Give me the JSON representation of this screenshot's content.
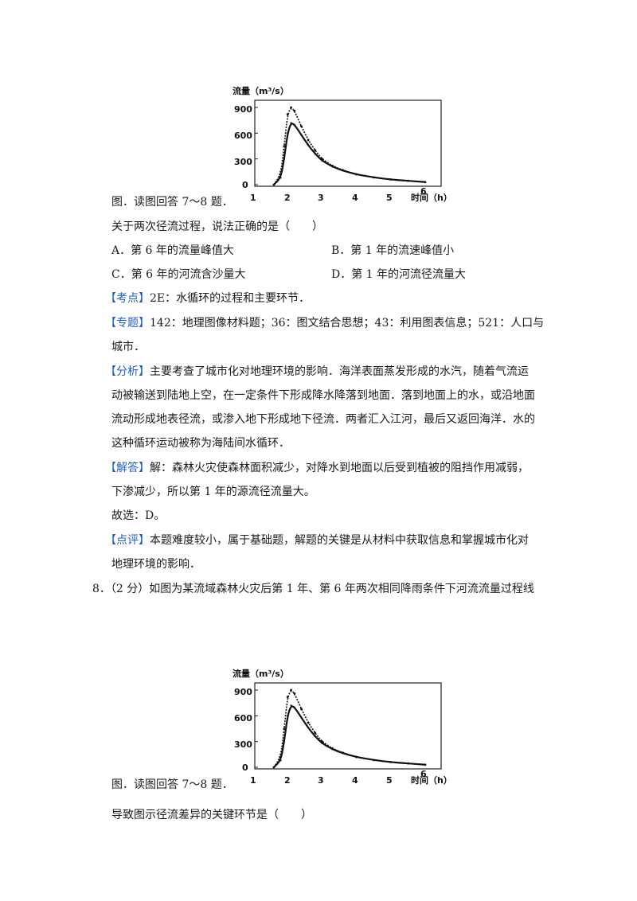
{
  "chart1": {
    "ylabel": "流量（m³/s）",
    "xlabel": "时间（h）",
    "yticks": [
      "900",
      "600",
      "300",
      "0"
    ],
    "xticks": [
      "1",
      "2",
      "3",
      "4",
      "5",
      "6"
    ]
  },
  "chart2": {
    "ylabel": "流量（m³/s）",
    "xlabel": "时间（h）",
    "yticks": [
      "900",
      "600",
      "300",
      "0"
    ],
    "xticks": [
      "1",
      "2",
      "3",
      "4",
      "5",
      "6"
    ]
  },
  "chart_data": [
    {
      "type": "line",
      "xlabel": "时间（h）",
      "ylabel": "流量（m³/s）",
      "xlim": [
        1,
        6.5
      ],
      "ylim": [
        0,
        1000
      ],
      "series": [
        {
          "x": [
            1.6,
            1.8,
            1.9,
            2.0,
            2.1,
            2.2,
            2.4,
            2.6,
            2.8,
            3.0,
            3.3,
            3.6,
            4.0,
            4.5,
            5.0,
            5.5,
            6.0
          ],
          "values": [
            0,
            120,
            450,
            820,
            900,
            860,
            680,
            520,
            400,
            300,
            220,
            170,
            120,
            85,
            60,
            45,
            30
          ]
        },
        {
          "x": [
            1.6,
            1.8,
            1.9,
            2.0,
            2.1,
            2.2,
            2.4,
            2.6,
            2.8,
            3.0,
            3.3,
            3.6,
            4.0,
            4.5,
            5.0,
            5.5,
            6.0
          ],
          "values": [
            0,
            80,
            300,
            600,
            720,
            700,
            580,
            460,
            360,
            280,
            210,
            165,
            120,
            85,
            60,
            45,
            30
          ]
        }
      ]
    },
    {
      "type": "line",
      "xlabel": "时间（h）",
      "ylabel": "流量（m³/s）",
      "xlim": [
        1,
        6.5
      ],
      "ylim": [
        0,
        1000
      ],
      "series": [
        {
          "x": [
            1.6,
            1.8,
            1.9,
            2.0,
            2.1,
            2.2,
            2.4,
            2.6,
            2.8,
            3.0,
            3.3,
            3.6,
            4.0,
            4.5,
            5.0,
            5.5,
            6.0
          ],
          "values": [
            0,
            120,
            450,
            820,
            900,
            860,
            680,
            520,
            400,
            300,
            220,
            170,
            120,
            85,
            60,
            45,
            30
          ]
        },
        {
          "x": [
            1.6,
            1.8,
            1.9,
            2.0,
            2.1,
            2.2,
            2.4,
            2.6,
            2.8,
            3.0,
            3.3,
            3.6,
            4.0,
            4.5,
            5.0,
            5.5,
            6.0
          ],
          "values": [
            0,
            80,
            300,
            600,
            720,
            700,
            580,
            460,
            360,
            280,
            210,
            165,
            120,
            85,
            60,
            45,
            30
          ]
        }
      ]
    }
  ],
  "text": {
    "caption1": "图．读图回答 7～8 题．",
    "question7": "关于两次径流过程，说法正确的是（　　）",
    "optA": "A．第 6 年的流量峰值大",
    "optB": "B．第 1 年的流速峰值小",
    "optC": "C．第 6 年的河流含沙量大",
    "optD": "D．第 1 年的河流径流量大",
    "kaodian_tag": "【考点】",
    "kaodian": "2E：水循环的过程和主要环节．",
    "zhuanti_tag": "【专题】",
    "zhuanti_1": "142：地理图像材料题；36：图文结合思想；43：利用图表信息；521：人口与",
    "zhuanti_2": "城市．",
    "fenxi_tag": "【分析】",
    "fenxi_1": "主要考查了城市化对地理环境的影响．海洋表面蒸发形成的水汽，随着气流运",
    "fenxi_2": "动被输送到陆地上空，在一定条件下形成降水降落到地面．落到地面上的水，或沿地面",
    "fenxi_3": "流动形成地表径流，或渗入地下形成地下径流．两者汇入江河，最后又返回海洋．水的",
    "fenxi_4": "这种循环运动被称为海陆间水循环．",
    "jieda_tag": "【解答】",
    "jieda_1": "解：森林火灾使森林面积减少，对降水到地面以后受到植被的阻挡作用减弱，",
    "jieda_2": "下渗减少，所以第 1 年的源流径流量大。",
    "guxuan": "故选：D。",
    "dianping_tag": "【点评】",
    "dianping_1": "本题难度较小，属于基础题，解题的关键是从材料中获取信息和掌握城市化对",
    "dianping_2": "地理环境的影响．",
    "q8": "8．（2 分）如图为某流域森林火灾后第 1 年、第 6 年两次相同降雨条件下河流流量过程线",
    "caption2": "图．读图回答 7～8 题．",
    "question8": "导致图示径流差异的关键环节是（　　）"
  }
}
